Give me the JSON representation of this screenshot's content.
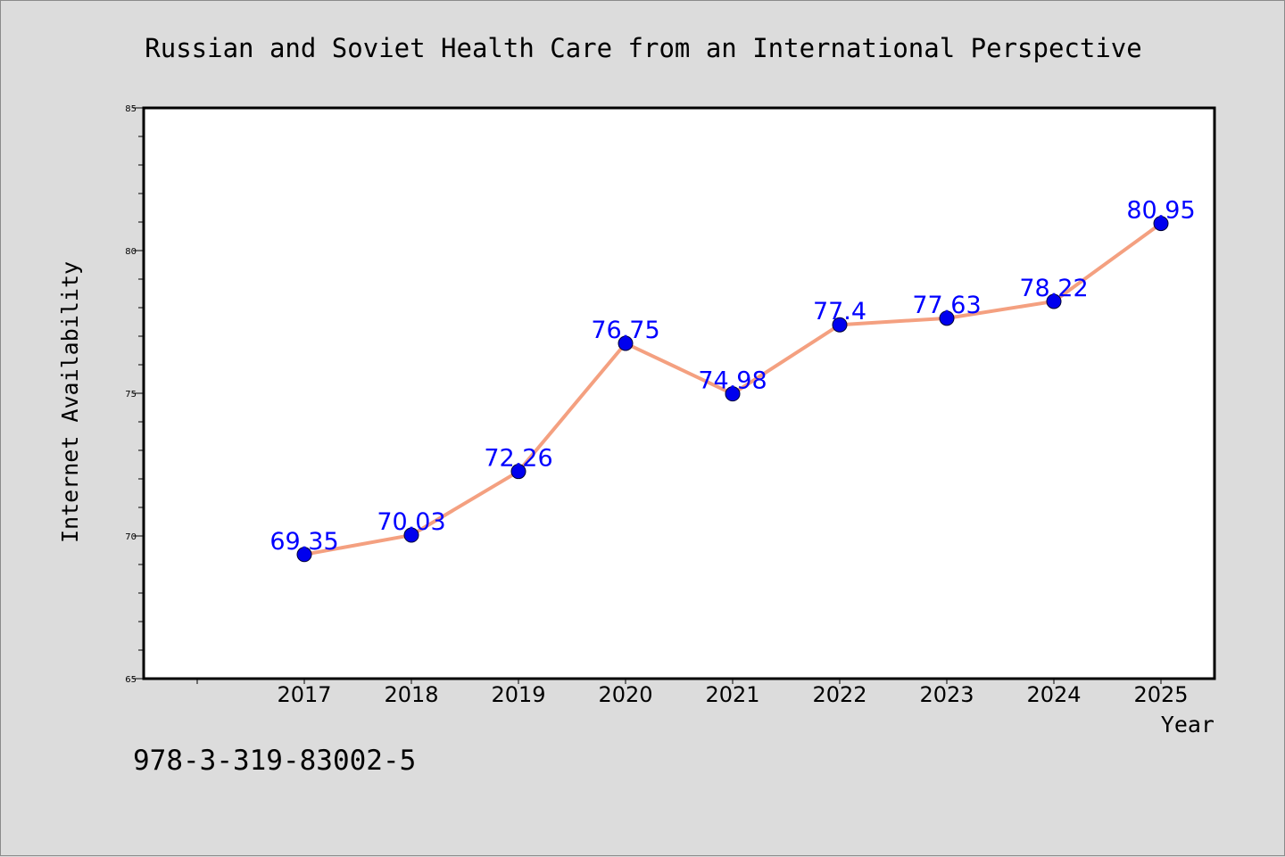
{
  "chart_data": {
    "type": "line",
    "title": "Russian and Soviet Health Care from an International Perspective",
    "xlabel": "Year",
    "ylabel": "Internet Availability",
    "categories": [
      "2017",
      "2018",
      "2019",
      "2020",
      "2021",
      "2022",
      "2023",
      "2024",
      "2025"
    ],
    "series": [
      {
        "values": [
          69.35,
          70.03,
          72.26,
          76.75,
          74.98,
          77.4,
          77.63,
          78.22,
          80.95
        ],
        "labels": [
          "69.35",
          "70.03",
          "72.26",
          "76.75",
          "74.98",
          "77.4",
          "77.63",
          "78.22",
          "80.95"
        ]
      }
    ],
    "ylim": [
      65,
      85
    ],
    "yticks": [
      "65",
      "70",
      "75",
      "80",
      "85"
    ],
    "grid": false,
    "line_color": "#f4a080",
    "marker_color": "#0000ee",
    "label_color": "#0000ff"
  },
  "footer": {
    "isbn": "978-3-319-83002-5"
  }
}
